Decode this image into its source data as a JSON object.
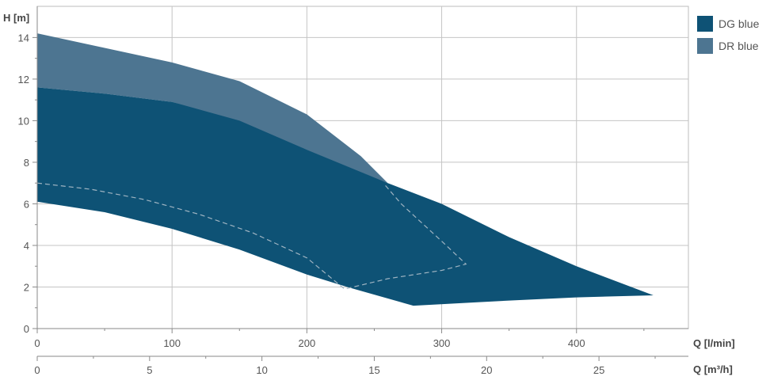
{
  "chart_data": {
    "type": "area",
    "title": "",
    "ylabel": "H [m]",
    "xlabel": "Q [l/min]",
    "xlabel_secondary": "Q [m³/h]",
    "ylim": [
      0,
      15.5
    ],
    "xlim": [
      0,
      483
    ],
    "y_ticks": [
      "0",
      "2",
      "4",
      "6",
      "8",
      "10",
      "12",
      "14"
    ],
    "x_ticks": [
      "0",
      "100",
      "200",
      "300",
      "400"
    ],
    "x2_ticks": [
      "0",
      "5",
      "10",
      "15",
      "20",
      "25"
    ],
    "grid": true,
    "legend_position": "top-right",
    "series": [
      {
        "name": "DR blue",
        "color": "#4d7591",
        "outline": [
          [
            0,
            14.2
          ],
          [
            50,
            13.5
          ],
          [
            100,
            12.8
          ],
          [
            150,
            11.9
          ],
          [
            200,
            10.3
          ],
          [
            240,
            8.3
          ],
          [
            260,
            7.0
          ],
          [
            240,
            7.5
          ],
          [
            200,
            8.5
          ],
          [
            150,
            9.9
          ],
          [
            100,
            10.9
          ],
          [
            50,
            11.3
          ],
          [
            0,
            11.6
          ]
        ]
      },
      {
        "name": "DG blue",
        "color": "#0e5275",
        "outline": [
          [
            0,
            11.6
          ],
          [
            50,
            11.3
          ],
          [
            100,
            10.9
          ],
          [
            150,
            10.0
          ],
          [
            200,
            8.6
          ],
          [
            260,
            7.0
          ],
          [
            300,
            6.0
          ],
          [
            350,
            4.4
          ],
          [
            400,
            3.0
          ],
          [
            457,
            1.6
          ],
          [
            400,
            1.5
          ],
          [
            350,
            1.35
          ],
          [
            279,
            1.1
          ],
          [
            230,
            2.0
          ],
          [
            200,
            2.6
          ],
          [
            150,
            3.8
          ],
          [
            100,
            4.8
          ],
          [
            50,
            5.6
          ],
          [
            0,
            6.1
          ]
        ]
      }
    ],
    "efficiency_curve": {
      "style": "dashed",
      "color": "#9fb4c2",
      "points": [
        [
          0,
          7.0
        ],
        [
          40,
          6.7
        ],
        [
          80,
          6.2
        ],
        [
          120,
          5.5
        ],
        [
          160,
          4.6
        ],
        [
          200,
          3.4
        ],
        [
          228,
          1.9
        ],
        [
          260,
          2.4
        ],
        [
          300,
          2.8
        ],
        [
          318,
          3.1
        ],
        [
          300,
          4.2
        ],
        [
          285,
          5.1
        ],
        [
          270,
          6.0
        ],
        [
          258,
          6.9
        ]
      ]
    }
  }
}
